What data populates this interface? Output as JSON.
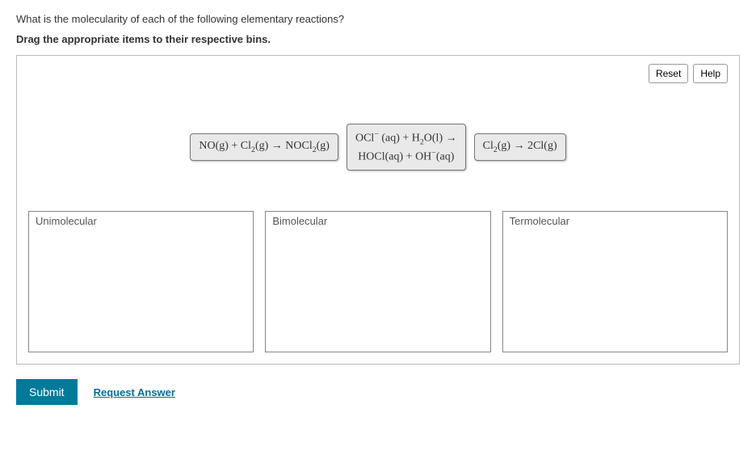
{
  "question": "What is the molecularity of each of the following elementary reactions?",
  "instruction": "Drag the appropriate items to their respective bins.",
  "buttons": {
    "reset": "Reset",
    "help": "Help",
    "submit": "Submit",
    "request_answer": "Request Answer"
  },
  "items": [
    {
      "html": "NO(g) + Cl<sub>2</sub>(g) → NOCl<sub>2</sub>(g)"
    },
    {
      "html": "OCl<sup>−</sup> (aq) + H<sub>2</sub>O(l) →<br>HOCl(aq) + OH<sup>−</sup>(aq)"
    },
    {
      "html": "Cl<sub>2</sub>(g) → 2Cl(g)"
    }
  ],
  "bins": [
    {
      "label": "Unimolecular"
    },
    {
      "label": "Bimolecular"
    },
    {
      "label": "Termolecular"
    }
  ]
}
